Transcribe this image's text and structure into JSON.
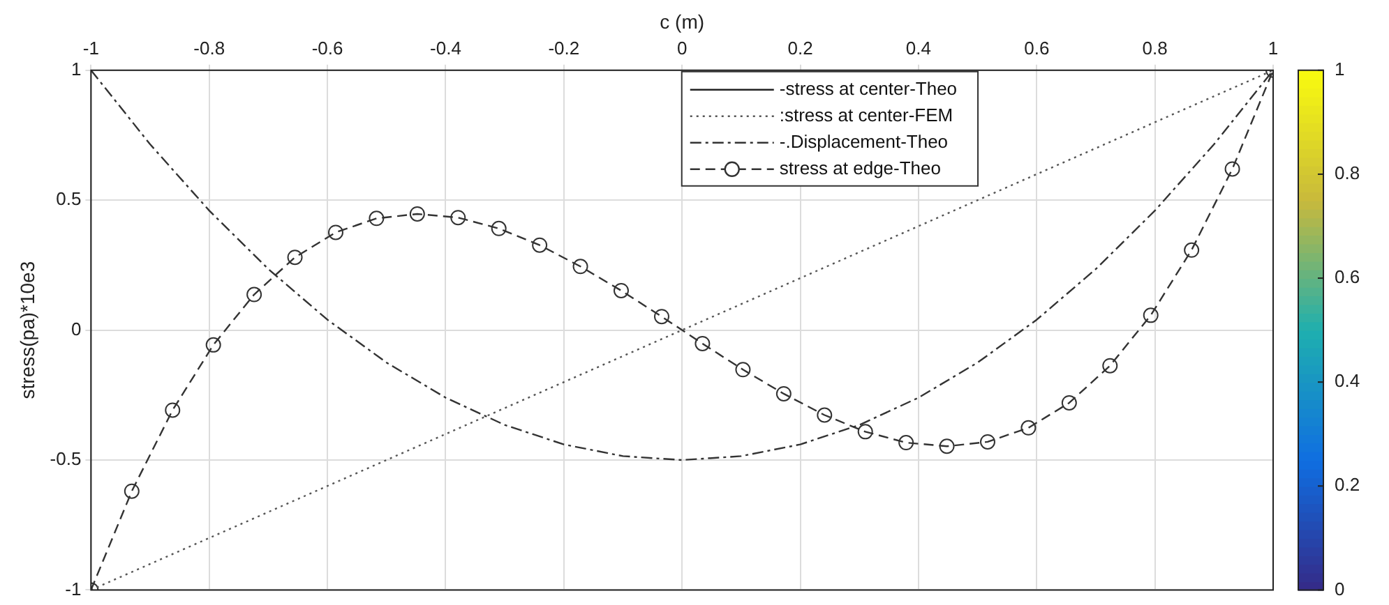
{
  "chart_data": {
    "type": "line",
    "xlabel": "c (m)",
    "ylabel": "stress(pa)*10e3",
    "xlim": [
      -1,
      1
    ],
    "xticks": [
      -1,
      -0.8,
      -0.6,
      -0.4,
      -0.2,
      0,
      0.2,
      0.4,
      0.6,
      0.8,
      1
    ],
    "ylim": [
      -1,
      1
    ],
    "yticks": [
      -1,
      -0.5,
      0,
      0.5,
      1
    ],
    "grid": true,
    "legend": "top",
    "clim": [
      0,
      1
    ],
    "cticks": [
      0,
      0.2,
      0.4,
      0.6,
      0.8,
      1
    ],
    "series": [
      {
        "name": "-stress at center-Theo",
        "color": "#222222",
        "line_style": "solid",
        "marker": "none"
      },
      {
        "name": ":stress at center-FEM",
        "color": "#555555",
        "line_style": "dotted",
        "marker": "none",
        "x": [
          -1,
          1
        ],
        "values": [
          -1,
          1
        ]
      },
      {
        "name": "-.Displacement-Theo",
        "color": "#333333",
        "line_style": "dashdot",
        "marker": "none",
        "x": [
          -1,
          -0.9,
          -0.8,
          -0.7,
          -0.6,
          -0.5,
          -0.4,
          -0.3,
          -0.2,
          -0.1,
          0,
          0.1,
          0.2,
          0.3,
          0.4,
          0.5,
          0.6,
          0.7,
          0.8,
          0.9,
          1
        ],
        "values": [
          1,
          0.715,
          0.46,
          0.235,
          0.04,
          -0.125,
          -0.26,
          -0.365,
          -0.44,
          -0.485,
          -0.5,
          -0.485,
          -0.44,
          -0.365,
          -0.26,
          -0.125,
          0.04,
          0.235,
          0.46,
          0.715,
          1
        ]
      },
      {
        "name": "stress at edge-Theo",
        "color": "#333333",
        "line_style": "dashed",
        "marker": "circle",
        "x": [
          -1,
          -0.931,
          -0.862,
          -0.793,
          -0.724,
          -0.655,
          -0.586,
          -0.517,
          -0.448,
          -0.379,
          -0.31,
          -0.241,
          -0.172,
          -0.103,
          -0.0345,
          0.0345,
          0.103,
          0.172,
          0.241,
          0.31,
          0.379,
          0.448,
          0.517,
          0.586,
          0.655,
          0.724,
          0.793,
          0.862,
          0.931,
          1
        ],
        "values": [
          -1,
          -0.62,
          -0.308,
          -0.057,
          0.137,
          0.28,
          0.376,
          0.43,
          0.447,
          0.433,
          0.391,
          0.327,
          0.245,
          0.152,
          0.052,
          -0.052,
          -0.152,
          -0.245,
          -0.327,
          -0.391,
          -0.433,
          -0.447,
          -0.43,
          -0.376,
          -0.28,
          -0.137,
          0.057,
          0.308,
          0.62,
          1
        ]
      }
    ]
  }
}
